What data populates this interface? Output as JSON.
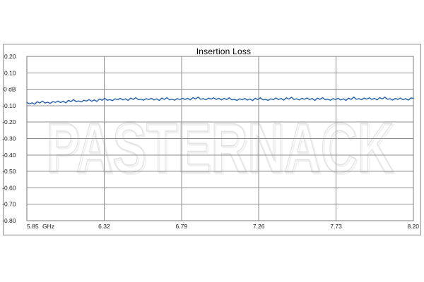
{
  "chart": {
    "title": "Insertion Loss",
    "watermark": "PASTERNACK",
    "colors": {
      "trace": "#2060ac",
      "grid": "#8f8f8f",
      "plot_border": "#7a7a7a",
      "frame_border": "#9c9c9c",
      "watermark_outline": "#e2e2e2",
      "watermark_shadow": "#f1f1f1",
      "label_text": "#1a1a1a"
    }
  },
  "chart_data": {
    "type": "line",
    "title": "Insertion Loss",
    "x_unit": "GHz",
    "y_unit": "dB",
    "x_range": [
      5.85,
      8.2
    ],
    "ylim": [
      -0.8,
      0.2
    ],
    "y_tick_step": 0.1,
    "grid": true,
    "legend": false,
    "x_tick_labels": [
      "5.85",
      "6.32",
      "6.79",
      "7.26",
      "7.73",
      "8.20"
    ],
    "y_tick_labels": [
      "0.20",
      "0.10",
      "0 dB",
      "-0.10",
      "-0.20",
      "-0.30",
      "-0.40",
      "-0.50",
      "-0.60",
      "-0.70",
      "-0.80"
    ],
    "series": [
      {
        "name": "Insertion Loss",
        "unit": "dB",
        "values": [
          -0.08,
          -0.089,
          -0.082,
          -0.091,
          -0.076,
          -0.084,
          -0.072,
          -0.084,
          -0.079,
          -0.086,
          -0.075,
          -0.08,
          -0.072,
          -0.081,
          -0.073,
          -0.083,
          -0.068,
          -0.075,
          -0.063,
          -0.076,
          -0.071,
          -0.077,
          -0.067,
          -0.072,
          -0.063,
          -0.073,
          -0.065,
          -0.074,
          -0.059,
          -0.067,
          -0.055,
          -0.067,
          -0.063,
          -0.069,
          -0.058,
          -0.064,
          -0.055,
          -0.065,
          -0.058,
          -0.068,
          -0.054,
          -0.062,
          -0.051,
          -0.064,
          -0.06,
          -0.067,
          -0.057,
          -0.063,
          -0.055,
          -0.065,
          -0.058,
          -0.068,
          -0.054,
          -0.062,
          -0.051,
          -0.064,
          -0.06,
          -0.067,
          -0.057,
          -0.063,
          -0.055,
          -0.062,
          -0.055,
          -0.065,
          -0.051,
          -0.059,
          -0.048,
          -0.061,
          -0.057,
          -0.064,
          -0.054,
          -0.06,
          -0.052,
          -0.062,
          -0.055,
          -0.065,
          -0.055,
          -0.063,
          -0.052,
          -0.065,
          -0.061,
          -0.068,
          -0.058,
          -0.064,
          -0.056,
          -0.066,
          -0.059,
          -0.069,
          -0.055,
          -0.063,
          -0.052,
          -0.065,
          -0.061,
          -0.068,
          -0.058,
          -0.064,
          -0.053,
          -0.063,
          -0.056,
          -0.066,
          -0.052,
          -0.06,
          -0.049,
          -0.062,
          -0.058,
          -0.065,
          -0.055,
          -0.061,
          -0.053,
          -0.063,
          -0.056,
          -0.068,
          -0.054,
          -0.062,
          -0.051,
          -0.064,
          -0.06,
          -0.067,
          -0.057,
          -0.063,
          -0.055,
          -0.065,
          -0.058,
          -0.068,
          -0.054,
          -0.062,
          -0.048,
          -0.061,
          -0.057,
          -0.064,
          -0.054,
          -0.06,
          -0.052,
          -0.062,
          -0.055,
          -0.065,
          -0.051,
          -0.059,
          -0.048,
          -0.061,
          -0.057,
          -0.066,
          -0.056,
          -0.062,
          -0.054,
          -0.064,
          -0.057,
          -0.067,
          -0.053,
          -0.055
        ]
      }
    ]
  }
}
